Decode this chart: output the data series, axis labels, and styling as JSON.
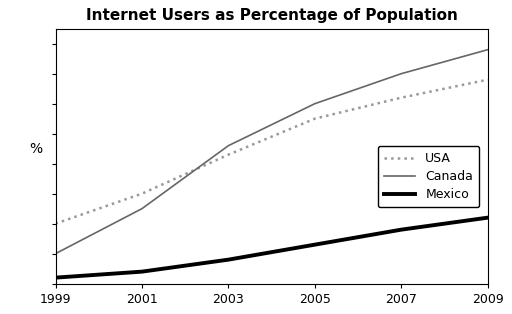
{
  "title": "Internet Users as Percentage of Population",
  "ylabel": "%",
  "years": [
    1999,
    2001,
    2003,
    2005,
    2007,
    2009
  ],
  "USA": [
    20,
    30,
    43,
    55,
    62,
    68
  ],
  "Canada": [
    10,
    25,
    46,
    60,
    70,
    78
  ],
  "Mexico": [
    2,
    4,
    8,
    13,
    18,
    22
  ],
  "xlim": [
    1999,
    2009
  ],
  "ylim": [
    0,
    85
  ],
  "xticks": [
    1999,
    2001,
    2003,
    2005,
    2007,
    2009
  ],
  "background_color": "#ffffff",
  "line_color_usa": "#999999",
  "line_color_canada": "#666666",
  "line_color_mexico": "#000000",
  "legend_labels": [
    "USA",
    "Canada",
    "Mexico"
  ],
  "title_fontsize": 11,
  "axis_label_fontsize": 10,
  "tick_fontsize": 9
}
